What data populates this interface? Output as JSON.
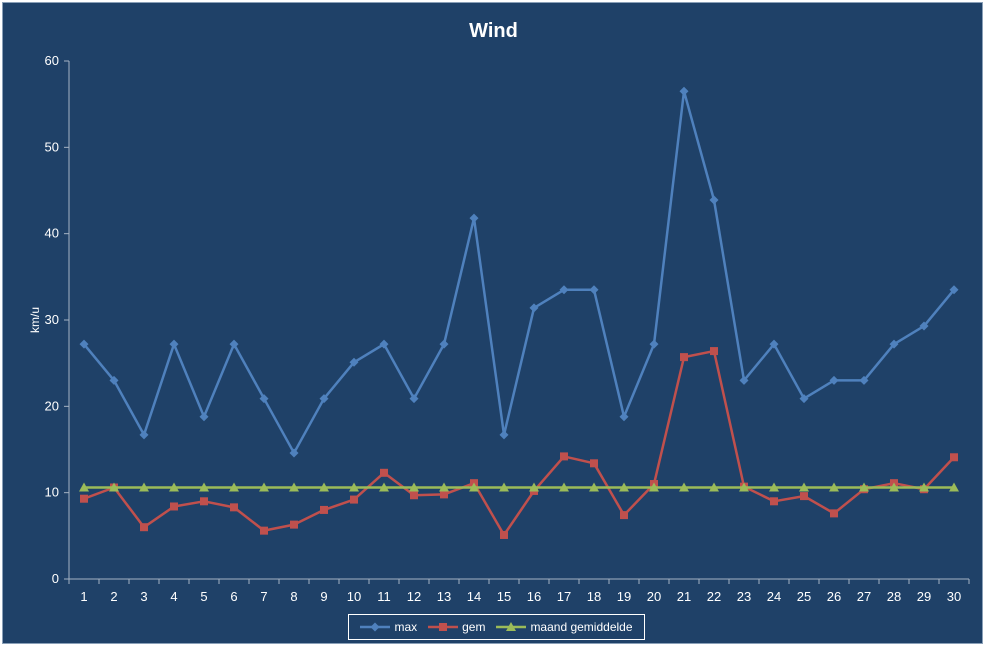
{
  "chart_data": {
    "type": "line",
    "title": "Wind",
    "ylabel": "km/u",
    "xlabel": "",
    "ylim": [
      0,
      60
    ],
    "yticks": [
      0,
      10,
      20,
      30,
      40,
      50,
      60
    ],
    "categories": [
      "1",
      "2",
      "3",
      "4",
      "5",
      "6",
      "7",
      "8",
      "9",
      "10",
      "11",
      "12",
      "13",
      "14",
      "15",
      "16",
      "17",
      "18",
      "19",
      "20",
      "21",
      "22",
      "23",
      "24",
      "25",
      "26",
      "27",
      "28",
      "29",
      "30"
    ],
    "series": [
      {
        "name": "max",
        "color": "#4f81bd",
        "marker": "diamond",
        "values": [
          27.2,
          23.0,
          16.7,
          27.2,
          18.8,
          27.2,
          20.9,
          14.6,
          20.9,
          25.1,
          27.2,
          20.9,
          27.2,
          41.8,
          16.7,
          31.4,
          33.5,
          33.5,
          18.8,
          27.2,
          56.5,
          43.9,
          23.0,
          27.2,
          20.9,
          23.0,
          23.0,
          27.2,
          29.3,
          33.5
        ]
      },
      {
        "name": "gem",
        "color": "#c0504d",
        "marker": "square",
        "values": [
          9.3,
          10.6,
          6.0,
          8.4,
          9.0,
          8.3,
          5.6,
          6.3,
          8.0,
          9.2,
          12.3,
          9.7,
          9.8,
          11.1,
          5.1,
          10.2,
          14.2,
          13.4,
          7.4,
          11.0,
          25.7,
          26.4,
          10.7,
          9.0,
          9.6,
          7.6,
          10.4,
          11.1,
          10.4,
          14.1
        ]
      },
      {
        "name": "maand gemiddelde",
        "color": "#9bbb59",
        "marker": "triangle",
        "values": [
          10.6,
          10.6,
          10.6,
          10.6,
          10.6,
          10.6,
          10.6,
          10.6,
          10.6,
          10.6,
          10.6,
          10.6,
          10.6,
          10.6,
          10.6,
          10.6,
          10.6,
          10.6,
          10.6,
          10.6,
          10.6,
          10.6,
          10.6,
          10.6,
          10.6,
          10.6,
          10.6,
          10.6,
          10.6,
          10.6
        ]
      }
    ],
    "grid": false,
    "legend_position": "bottom"
  }
}
